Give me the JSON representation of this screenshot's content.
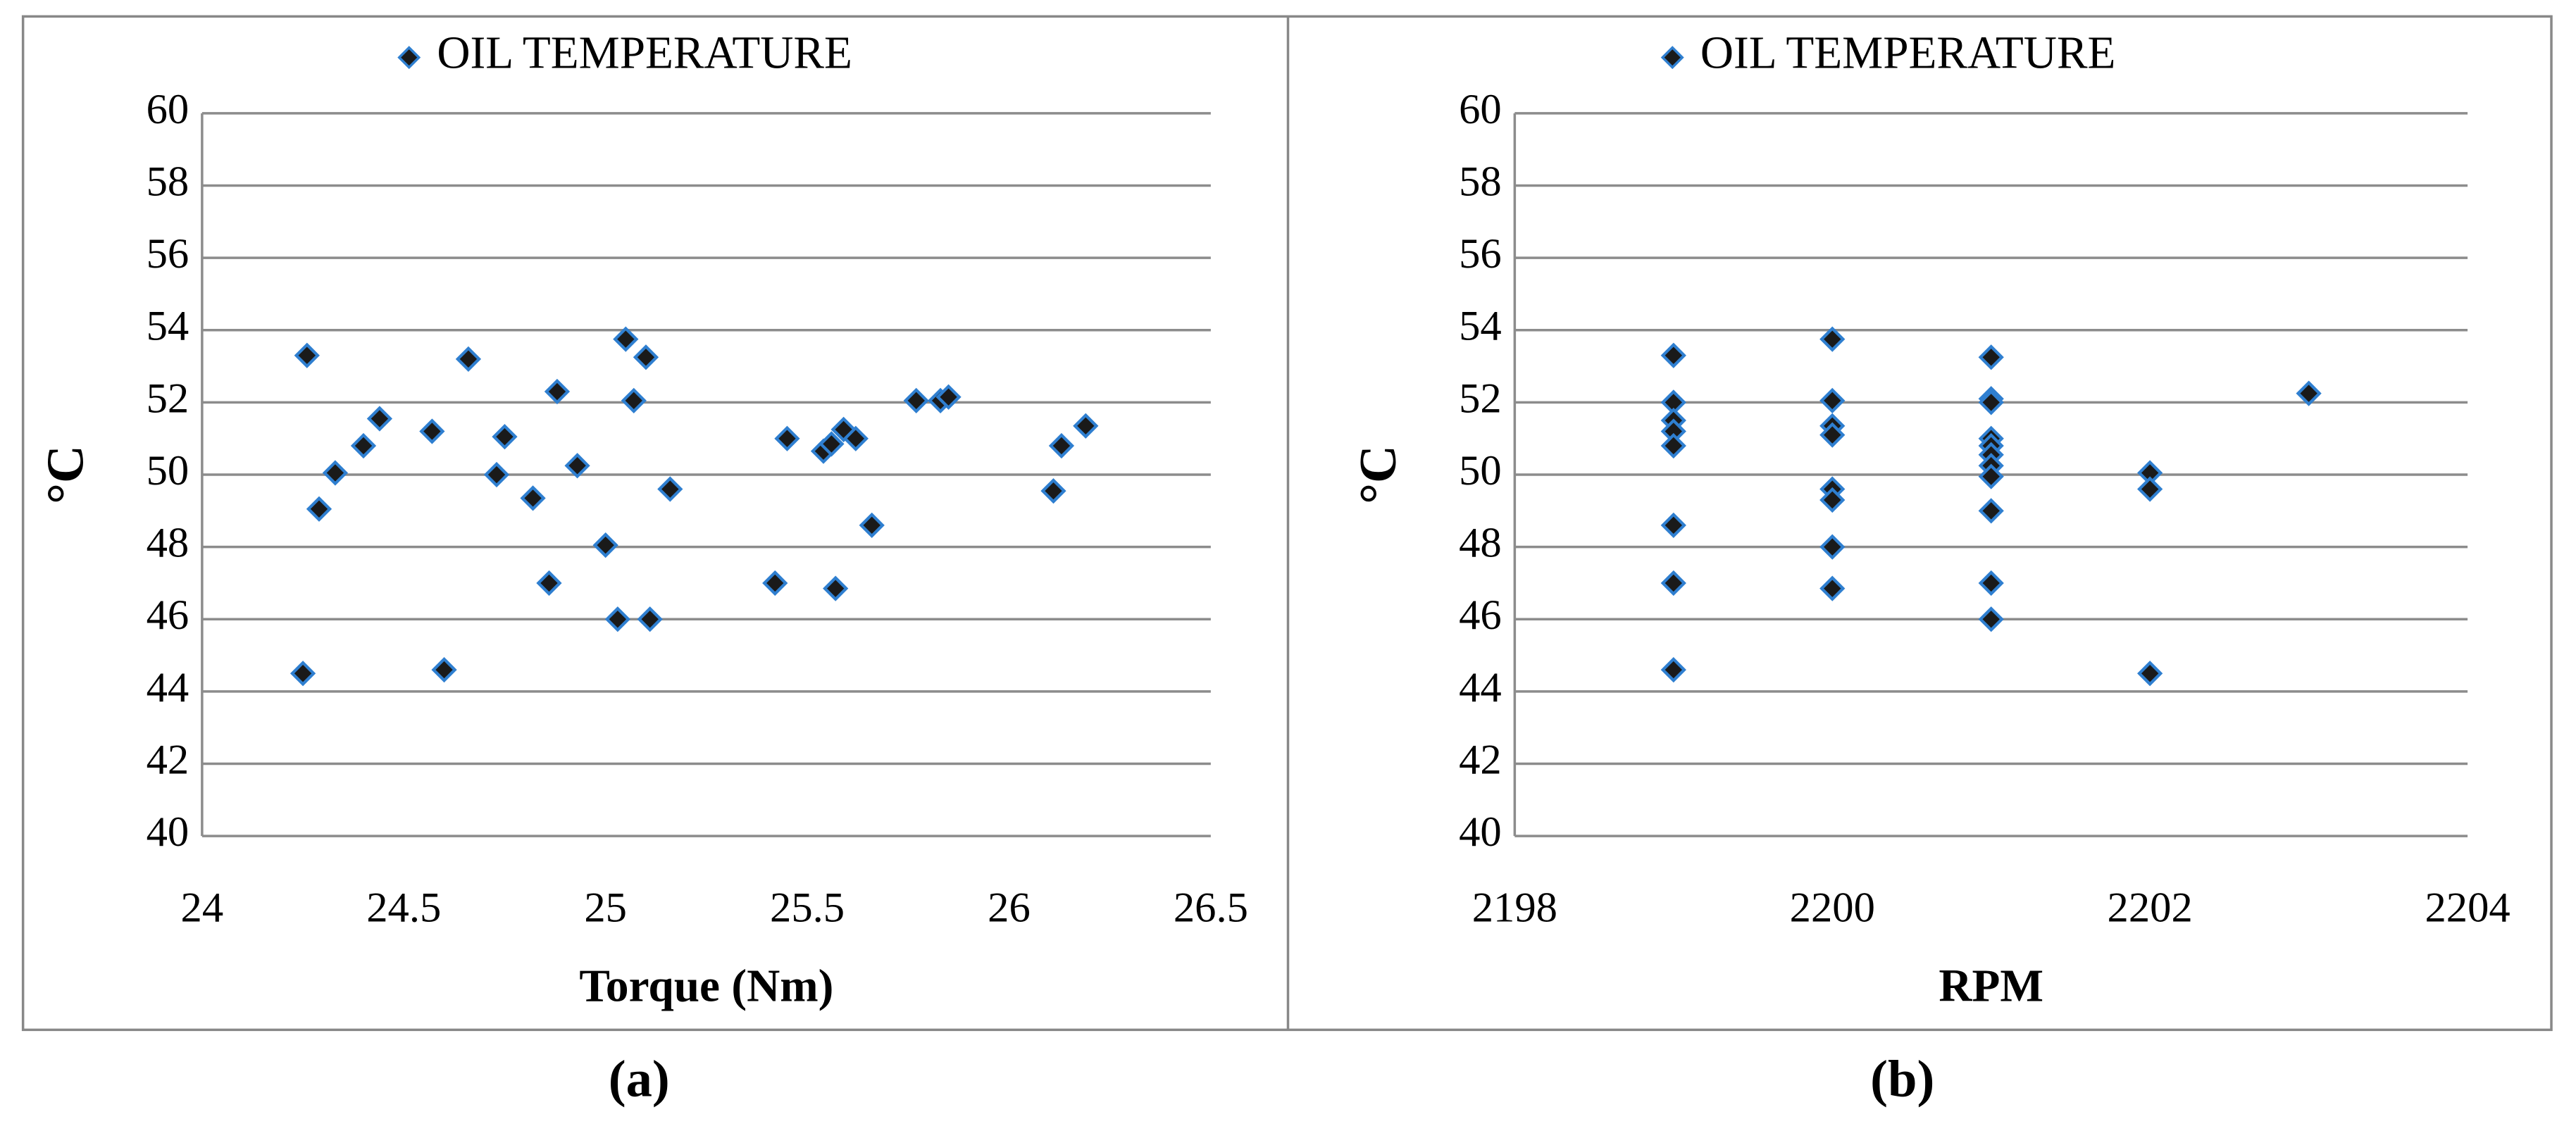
{
  "chart_data": [
    {
      "type": "scatter",
      "caption": "(a)",
      "x_label": "Torque (Nm)",
      "y_label": "°C",
      "x": [
        24.25,
        24.26,
        24.29,
        24.33,
        24.4,
        24.44,
        24.57,
        24.6,
        24.66,
        24.73,
        24.75,
        24.82,
        24.86,
        24.88,
        24.93,
        25.0,
        25.03,
        25.05,
        25.07,
        25.1,
        25.11,
        25.16,
        25.42,
        25.45,
        25.54,
        25.56,
        25.57,
        25.59,
        25.62,
        25.66,
        25.77,
        25.83,
        25.85,
        26.11,
        26.13,
        26.19
      ],
      "series": [
        {
          "name": "OIL TEMPERATURE",
          "color": "#1a1a1a",
          "edge_color": "#2f7fd0",
          "values": [
            44.5,
            53.3,
            49.05,
            50.05,
            50.8,
            51.55,
            51.2,
            44.6,
            53.2,
            50.0,
            51.05,
            49.35,
            47.0,
            52.3,
            50.25,
            48.05,
            46.0,
            53.75,
            52.05,
            53.25,
            46.0,
            49.6,
            47.0,
            51.0,
            50.65,
            50.85,
            46.85,
            51.25,
            51.0,
            48.6,
            52.05,
            52.05,
            52.15,
            49.55,
            50.8,
            51.35
          ]
        }
      ],
      "xlim": [
        24,
        26.5
      ],
      "xticks": [
        24,
        24.5,
        25,
        25.5,
        26,
        26.5
      ],
      "ylim": [
        40,
        60
      ],
      "yticks": [
        40,
        42,
        44,
        46,
        48,
        50,
        52,
        54,
        56,
        58,
        60
      ],
      "grid": true,
      "legend": "top"
    },
    {
      "type": "scatter",
      "caption": "(b)",
      "x_label": "RPM",
      "y_label": "°C",
      "x": [
        2199,
        2199,
        2199,
        2199,
        2199,
        2199,
        2199,
        2199,
        2200,
        2200,
        2200,
        2200,
        2200,
        2200,
        2200,
        2200,
        2201,
        2201,
        2201,
        2201,
        2201,
        2201,
        2201,
        2201,
        2201,
        2201,
        2201,
        2202,
        2202,
        2202,
        2203
      ],
      "series": [
        {
          "name": "OIL TEMPERATURE",
          "color": "#1a1a1a",
          "edge_color": "#2f7fd0",
          "values": [
            53.3,
            52.0,
            51.5,
            51.2,
            50.8,
            48.6,
            47.0,
            44.6,
            53.75,
            52.05,
            51.35,
            51.1,
            49.6,
            49.3,
            48.0,
            46.85,
            53.25,
            52.1,
            52.0,
            51.0,
            50.8,
            50.55,
            50.25,
            49.95,
            49.0,
            47.0,
            46.0,
            50.05,
            49.6,
            44.5,
            52.25
          ]
        }
      ],
      "xlim": [
        2198,
        2204
      ],
      "xticks": [
        2198,
        2200,
        2202,
        2204
      ],
      "ylim": [
        40,
        60
      ],
      "yticks": [
        40,
        42,
        44,
        46,
        48,
        50,
        52,
        54,
        56,
        58,
        60
      ],
      "grid": true,
      "legend": "top"
    }
  ]
}
